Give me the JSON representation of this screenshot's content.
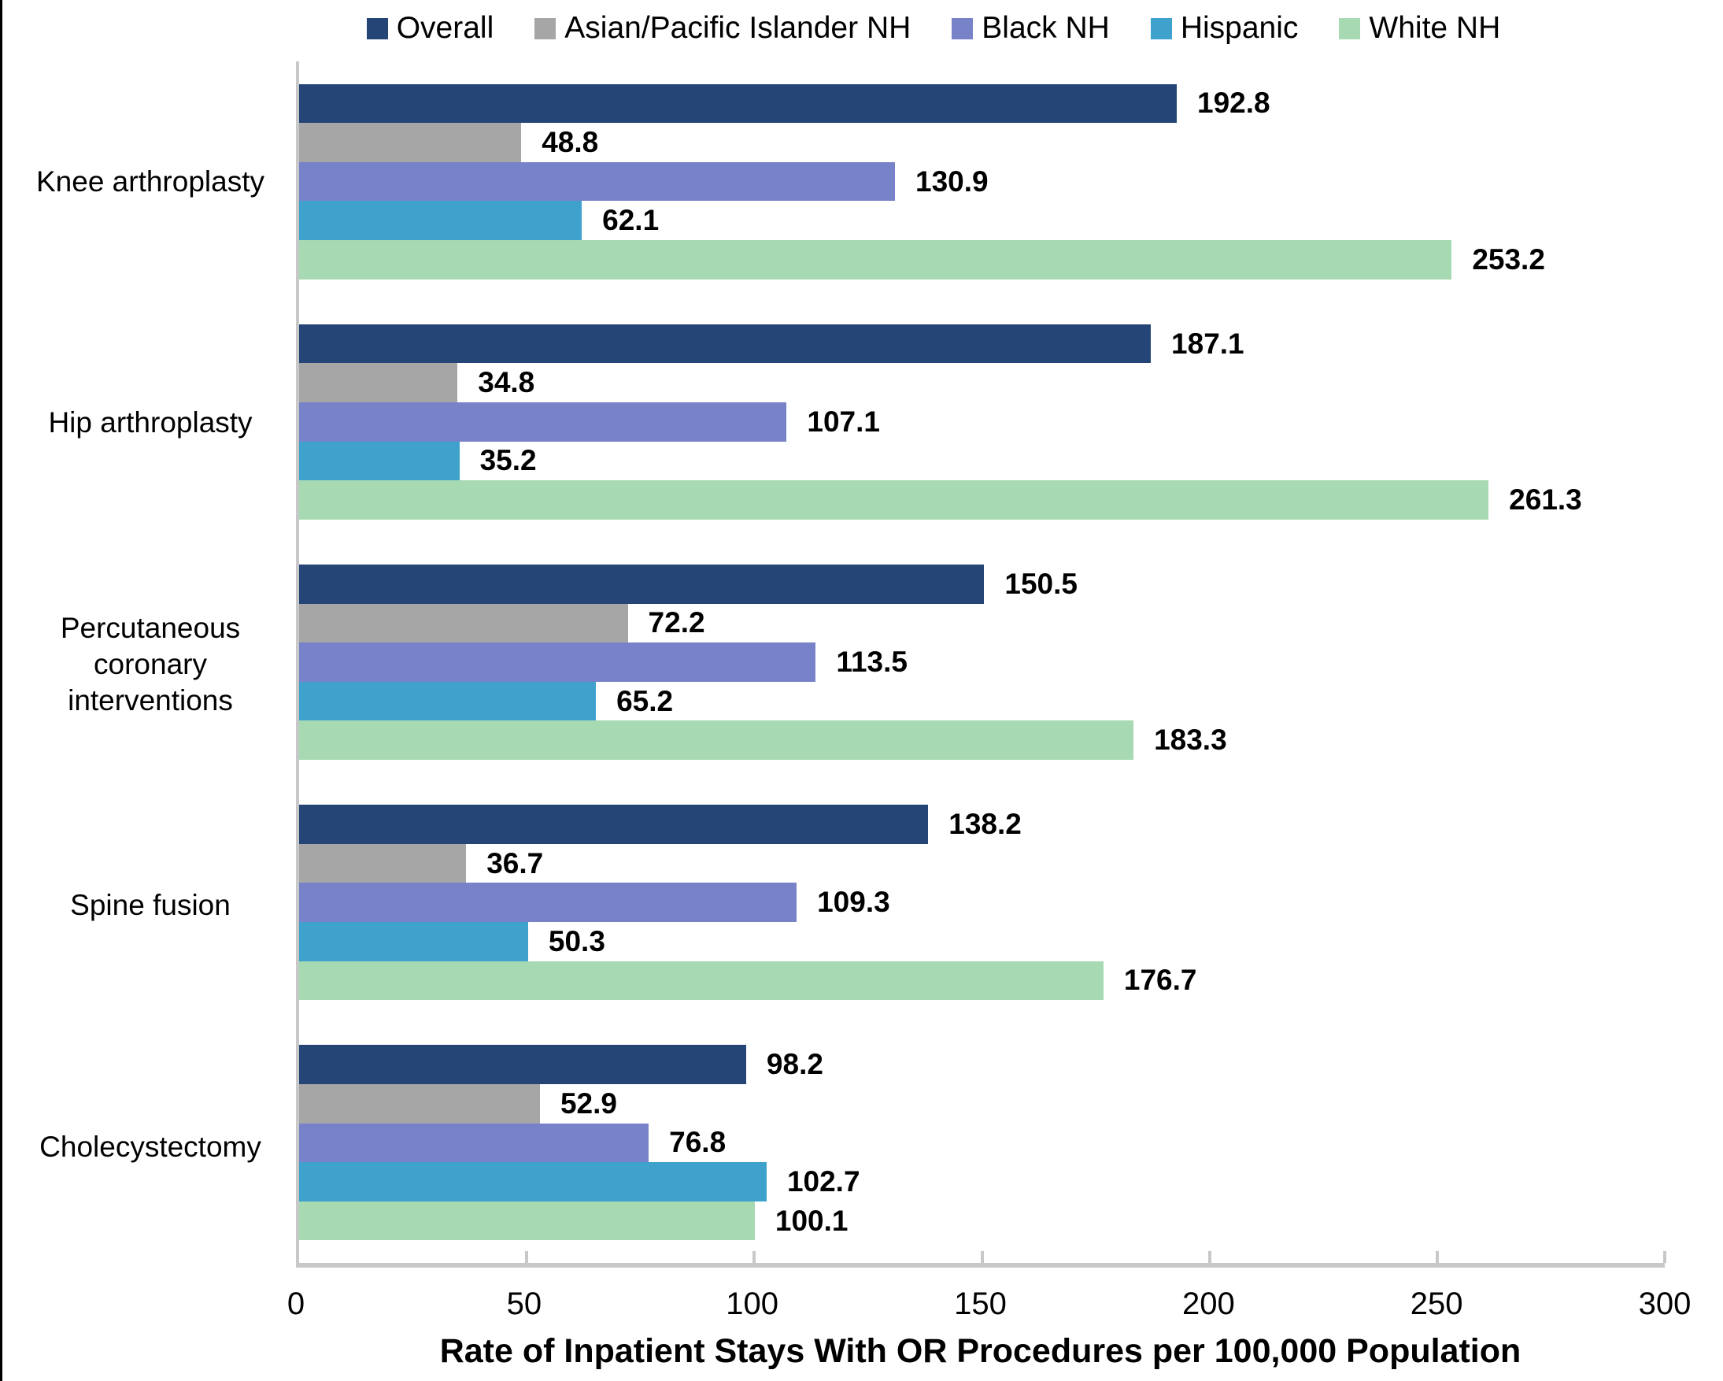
{
  "chart_data": {
    "type": "bar",
    "orientation": "horizontal",
    "title": "",
    "xlabel": "Rate of Inpatient Stays With OR Procedures per 100,000 Population",
    "ylabel": "",
    "xlim": [
      0,
      300
    ],
    "xticks": [
      0,
      50,
      100,
      150,
      200,
      250,
      300
    ],
    "grid": false,
    "legend_position": "top",
    "value_labels": "end-of-bar, one decimal, bold",
    "categories": [
      "Knee arthroplasty",
      "Hip arthroplasty",
      "Percutaneous coronary interventions",
      "Spine fusion",
      "Cholecystectomy"
    ],
    "series": [
      {
        "name": "Overall",
        "color": "#254577",
        "values": [
          192.8,
          187.1,
          150.5,
          138.2,
          98.2
        ]
      },
      {
        "name": "Asian/Pacific Islander NH",
        "color": "#A6A6A6",
        "values": [
          48.8,
          34.8,
          72.2,
          36.7,
          52.9
        ]
      },
      {
        "name": "Black NH",
        "color": "#7782C9",
        "values": [
          130.9,
          107.1,
          113.5,
          109.3,
          76.8
        ]
      },
      {
        "name": "Hispanic",
        "color": "#3FA2CC",
        "values": [
          62.1,
          35.2,
          65.2,
          50.3,
          102.7
        ]
      },
      {
        "name": "White NH",
        "color": "#A7D9B2",
        "values": [
          253.2,
          261.3,
          183.3,
          176.7,
          100.1
        ]
      }
    ]
  },
  "axis_style": {
    "line_color": "#C8C8C8",
    "text_color": "#000000"
  }
}
